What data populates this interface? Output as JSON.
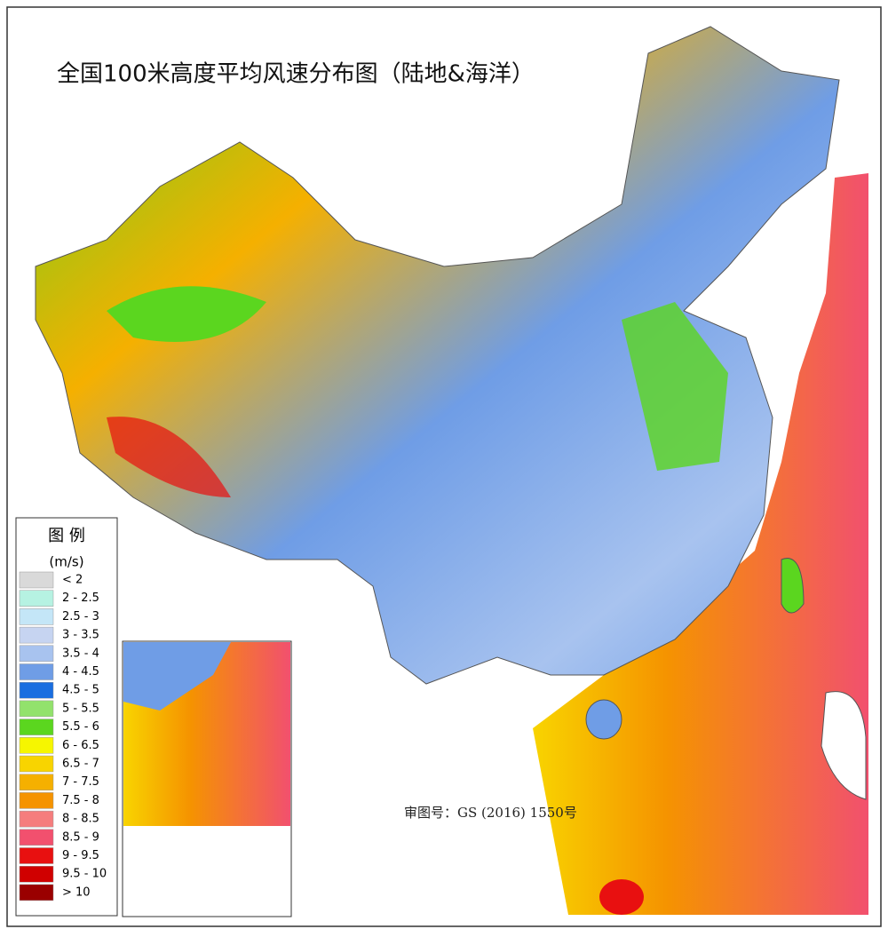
{
  "title": "全国100米高度平均风速分布图（陆地&海洋）",
  "legend": {
    "title": "图 例",
    "unit": "(m/s)",
    "items": [
      {
        "label": "< 2",
        "color": "#d9d9d9"
      },
      {
        "label": "2 - 2.5",
        "color": "#b6f2e2"
      },
      {
        "label": "2.5 - 3",
        "color": "#c4e6f7"
      },
      {
        "label": "3 - 3.5",
        "color": "#c6d4f1"
      },
      {
        "label": "3.5 - 4",
        "color": "#a8c3ef"
      },
      {
        "label": "4 - 4.5",
        "color": "#6f9de6"
      },
      {
        "label": "4.5 - 5",
        "color": "#1a6ee0"
      },
      {
        "label": "5 - 5.5",
        "color": "#92e26c"
      },
      {
        "label": "5.5 - 6",
        "color": "#5bd61f"
      },
      {
        "label": "6 - 6.5",
        "color": "#f6f600"
      },
      {
        "label": "6.5 - 7",
        "color": "#f8d400"
      },
      {
        "label": "7 - 7.5",
        "color": "#f5b000"
      },
      {
        "label": "7.5 - 8",
        "color": "#f59300"
      },
      {
        "label": "8 - 8.5",
        "color": "#f57d7d"
      },
      {
        "label": "8.5 - 9",
        "color": "#f2506e"
      },
      {
        "label": "9 - 9.5",
        "color": "#e81010"
      },
      {
        "label": "9.5 - 10",
        "color": "#d00000"
      },
      {
        "label": "> 10",
        "color": "#9a0000"
      }
    ]
  },
  "approval": "审图号：GS (2016) 1550号"
}
